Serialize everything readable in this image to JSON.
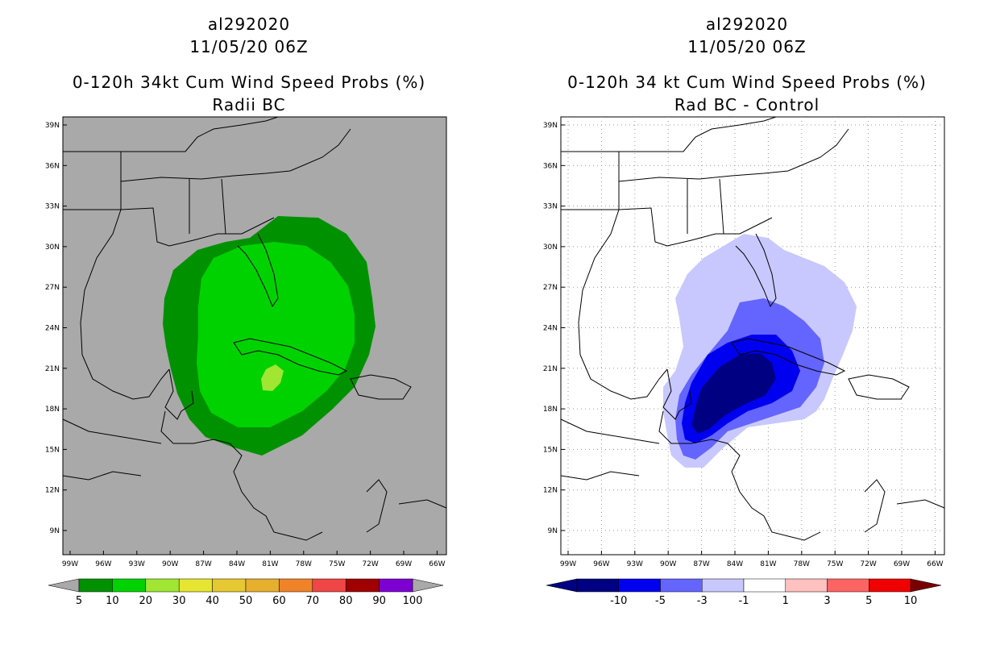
{
  "left": {
    "title_line1": "al292020",
    "title_line2": "11/05/20 06Z",
    "title_line3": "0-120h 34kt Cum Wind Speed Probs (%)",
    "title_line4": "Radii BC",
    "background_color": "#a9a9a9",
    "colorbar": {
      "labels": [
        "5",
        "10",
        "20",
        "30",
        "40",
        "50",
        "60",
        "70",
        "80",
        "90",
        "100"
      ],
      "colors": [
        "#009100",
        "#00d200",
        "#a0e632",
        "#e6e632",
        "#e6c832",
        "#e6af2d",
        "#f08228",
        "#f04646",
        "#a00000",
        "#7d00d2"
      ]
    }
  },
  "right": {
    "title_line1": "al292020",
    "title_line2": "11/05/20 06Z",
    "title_line3": "0-120h 34 kt Cum Wind Speed Probs (%)",
    "title_line4": "Rad BC - Control",
    "background_color": "#ffffff",
    "colorbar": {
      "labels": [
        "-10",
        "-5",
        "-3",
        "-1",
        "1",
        "3",
        "5",
        "10"
      ],
      "colors": [
        "#000082",
        "#0000f0",
        "#6464ff",
        "#c8c8ff",
        "#ffffff",
        "#ffc0c0",
        "#ff6464",
        "#f00000"
      ]
    }
  },
  "axes": {
    "lat_labels": [
      "39N",
      "36N",
      "33N",
      "30N",
      "27N",
      "24N",
      "21N",
      "18N",
      "15N",
      "12N",
      "9N"
    ],
    "lon_labels": [
      "99W",
      "96W",
      "93W",
      "90W",
      "87W",
      "84W",
      "81W",
      "78W",
      "75W",
      "72W",
      "69W",
      "66W"
    ]
  },
  "icons": {
    "left_map": "coastline-map-icon",
    "right_map": "coastline-map-icon"
  }
}
